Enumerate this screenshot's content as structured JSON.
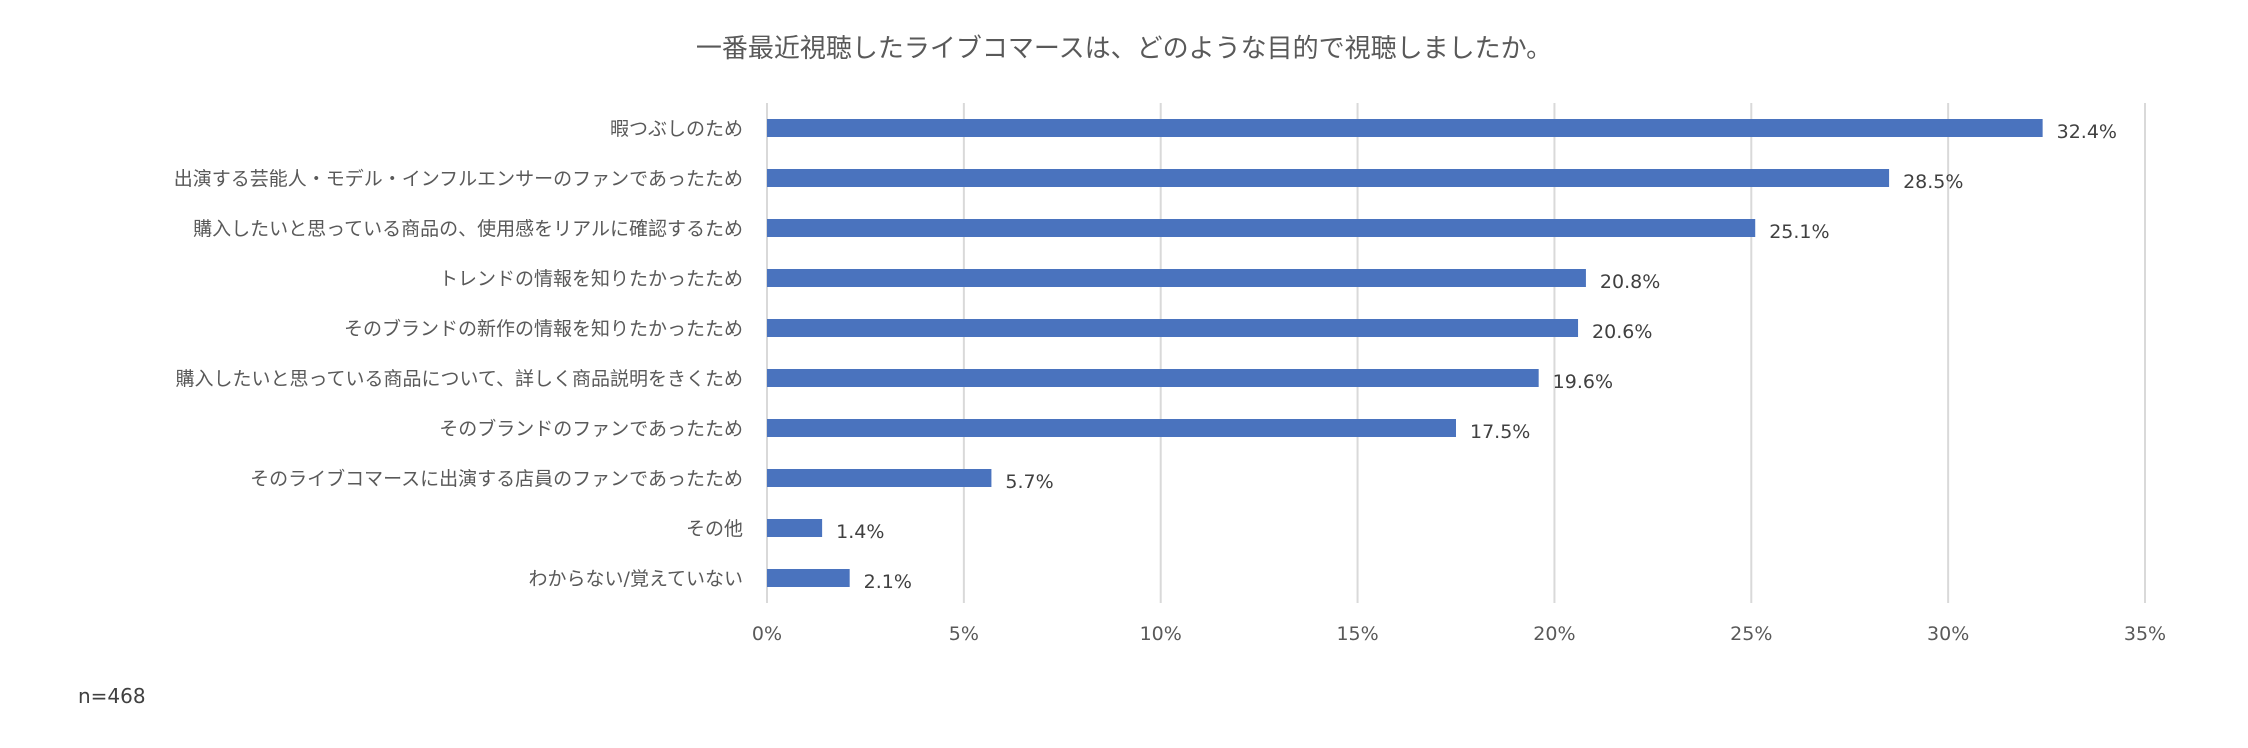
{
  "chart_data": {
    "type": "bar",
    "orientation": "horizontal",
    "title": "一番最近視聴したライブコマースは、どのような目的で視聴しましたか。",
    "categories": [
      "暇つぶしのため",
      "出演する芸能人・モデル・インフルエンサーのファンであったため",
      "購入したいと思っている商品の、使用感をリアルに確認するため",
      "トレンドの情報を知りたかったため",
      "そのブランドの新作の情報を知りたかったため",
      "購入したいと思っている商品について、詳しく商品説明をきくため",
      "そのブランドのファンであったため",
      "そのライブコマースに出演する店員のファンであったため",
      "その他",
      "わからない/覚えていない"
    ],
    "values": [
      32.4,
      28.5,
      25.1,
      20.8,
      20.6,
      19.6,
      17.5,
      5.7,
      1.4,
      2.1
    ],
    "data_labels": [
      "32.4%",
      "28.5%",
      "25.1%",
      "20.8%",
      "20.6%",
      "19.6%",
      "17.5%",
      "5.7%",
      "1.4%",
      "2.1%"
    ],
    "xlim": [
      0,
      35
    ],
    "x_ticks": [
      "0%",
      "5%",
      "10%",
      "15%",
      "20%",
      "25%",
      "30%",
      "35%"
    ],
    "xlabel": "",
    "ylabel": "",
    "grid": true,
    "legend": "none",
    "bar_color": "#4a73be",
    "note": "n=468"
  }
}
